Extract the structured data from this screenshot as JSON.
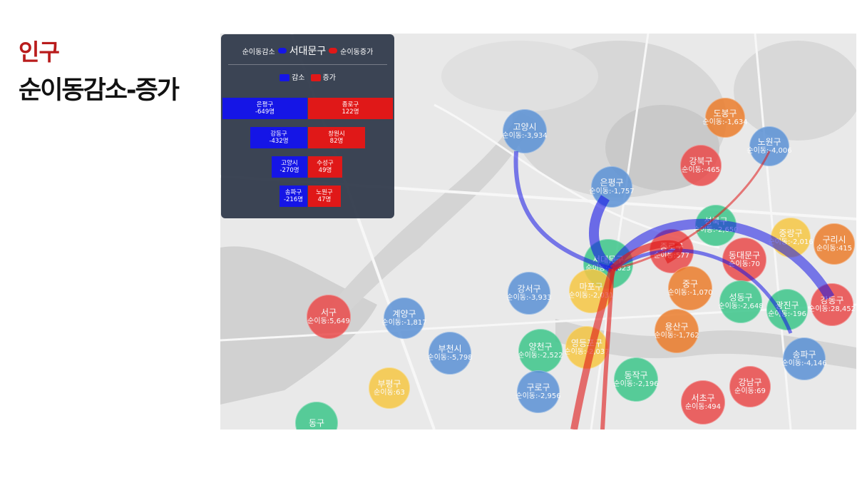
{
  "header": {
    "category": "인구",
    "title": "순이동감소-증가"
  },
  "panel": {
    "legend_decrease_label": "순이동감소",
    "selected_district": "서대문구",
    "legend_increase_label": "순이동증가",
    "bar_legend": {
      "decrease": "감소",
      "increase": "증가"
    },
    "rows": [
      {
        "dec_name": "은평구",
        "dec_value": "-649명",
        "inc_name": "종로구",
        "inc_value": "122명",
        "dec_frac": 1.0,
        "inc_frac": 1.0
      },
      {
        "dec_name": "강동구",
        "dec_value": "-432명",
        "inc_name": "창원시",
        "inc_value": "82명",
        "dec_frac": 0.67,
        "inc_frac": 0.67
      },
      {
        "dec_name": "고양시",
        "dec_value": "-270명",
        "inc_name": "수성구",
        "inc_value": "49명",
        "dec_frac": 0.42,
        "inc_frac": 0.4
      },
      {
        "dec_name": "송파구",
        "dec_value": "-216명",
        "inc_name": "노원구",
        "inc_value": "47명",
        "dec_frac": 0.33,
        "inc_frac": 0.39
      }
    ]
  },
  "colors": {
    "blue": "#5b92d6",
    "red": "#ea4b4b",
    "orange": "#ec7d2c",
    "yellow": "#f6c744",
    "green": "#3dc68b",
    "flow_decrease": "#1515e6",
    "flow_increase": "#e01818"
  },
  "districts": [
    {
      "name": "고양시",
      "value": "순이동:-3,934",
      "color": "blue"
    },
    {
      "name": "은평구",
      "value": "순이동:-1,757",
      "color": "blue"
    },
    {
      "name": "도봉구",
      "value": "순이동:-1,634",
      "color": "orange"
    },
    {
      "name": "노원구",
      "value": "순이동:-4,006",
      "color": "blue"
    },
    {
      "name": "강북구",
      "value": "순이동:-465",
      "color": "red"
    },
    {
      "name": "성북구",
      "value": "순이동:-2,650",
      "color": "green"
    },
    {
      "name": "중랑구",
      "value": "순이동:-2,016",
      "color": "yellow"
    },
    {
      "name": "구리시",
      "value": "순이동:415",
      "color": "orange"
    },
    {
      "name": "서대문구",
      "value": "순이동:-2,623",
      "color": "green"
    },
    {
      "name": "종로구",
      "value": "순이동:577",
      "color": "red"
    },
    {
      "name": "동대문구",
      "value": "순이동:70",
      "color": "red"
    },
    {
      "name": "마포구",
      "value": "순이동:-2,031",
      "color": "yellow"
    },
    {
      "name": "중구",
      "value": "순이동:-1,070",
      "color": "orange"
    },
    {
      "name": "성동구",
      "value": "순이동:-2,648",
      "color": "green"
    },
    {
      "name": "광진구",
      "value": "순이동:-196",
      "color": "green"
    },
    {
      "name": "강동구",
      "value": "순이동:28,452",
      "color": "red"
    },
    {
      "name": "강서구",
      "value": "순이동:-3,933",
      "color": "blue"
    },
    {
      "name": "서구",
      "value": "순이동:5,649",
      "color": "red"
    },
    {
      "name": "계양구",
      "value": "순이동:-1,817",
      "color": "blue"
    },
    {
      "name": "부천시",
      "value": "순이동:-5,798",
      "color": "blue"
    },
    {
      "name": "양천구",
      "value": "순이동:-2,522",
      "color": "green"
    },
    {
      "name": "영등포구",
      "value": "순이동:-2,037",
      "color": "yellow"
    },
    {
      "name": "용산구",
      "value": "순이동:-1,762",
      "color": "orange"
    },
    {
      "name": "송파구",
      "value": "순이동:-4,146",
      "color": "blue"
    },
    {
      "name": "구로구",
      "value": "순이동:-2,956",
      "color": "blue"
    },
    {
      "name": "동작구",
      "value": "순이동:-2,196",
      "color": "green"
    },
    {
      "name": "강남구",
      "value": "순이동:69",
      "color": "red"
    },
    {
      "name": "서초구",
      "value": "순이동:494",
      "color": "red"
    },
    {
      "name": "부평구",
      "value": "순이동:63",
      "color": "yellow"
    },
    {
      "name": "동구",
      "value": "",
      "color": "green"
    }
  ]
}
